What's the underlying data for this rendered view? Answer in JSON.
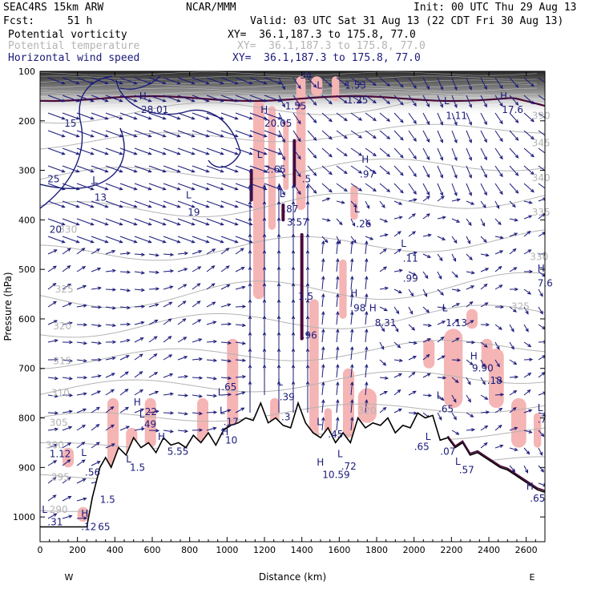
{
  "header": {
    "model": "SEAC4RS 15km ARW",
    "center": "NCAR/MMM",
    "init": "Init: 00 UTC Thu 29 Aug 13",
    "fcst_label": "Fcst:",
    "fcst_value": "51 h",
    "valid": "Valid: 03 UTC Sat 31 Aug 13 (22 CDT Fri 30 Aug 13)"
  },
  "fields": [
    {
      "name": "Potential vorticity",
      "xy": "XY=  36.1,187.3 to 175.8, 77.0",
      "color": "#000000"
    },
    {
      "name": "Potential temperature",
      "xy": "XY=  36.1,187.3 to 175.8, 77.0",
      "color": "#b4b4b4"
    },
    {
      "name": "Horizontal wind speed",
      "xy": "XY=  36.1,187.3 to 175.8, 77.0",
      "color": "#1a1a7a"
    }
  ],
  "chart_data": {
    "type": "cross-section",
    "xlabel": "Distance (km)",
    "ylabel": "Pressure (hPa)",
    "xlim": [
      0,
      2700
    ],
    "ylim": [
      1050,
      100
    ],
    "x_ticks": [
      0,
      200,
      400,
      600,
      800,
      1000,
      1200,
      1400,
      1600,
      1800,
      2000,
      2200,
      2400,
      2600
    ],
    "y_ticks": [
      100,
      200,
      300,
      400,
      500,
      600,
      700,
      800,
      900,
      1000
    ],
    "x_end_labels": {
      "left": "W",
      "right": "E"
    },
    "terrain": {
      "x": [
        0,
        250,
        280,
        320,
        350,
        380,
        420,
        460,
        500,
        540,
        580,
        620,
        660,
        700,
        740,
        780,
        820,
        860,
        900,
        940,
        980,
        1020,
        1060,
        1100,
        1140,
        1180,
        1220,
        1260,
        1300,
        1340,
        1380,
        1420,
        1460,
        1500,
        1540,
        1580,
        1620,
        1660,
        1700,
        1740,
        1780,
        1820,
        1860,
        1900,
        1940,
        1980,
        2020,
        2060,
        2100,
        2140,
        2180,
        2220,
        2260,
        2300,
        2340,
        2380,
        2420,
        2460,
        2500,
        2540,
        2580,
        2620,
        2660,
        2700
      ],
      "p": [
        1020,
        1020,
        960,
        900,
        880,
        900,
        860,
        875,
        840,
        860,
        850,
        870,
        840,
        855,
        850,
        860,
        835,
        850,
        830,
        855,
        825,
        815,
        810,
        800,
        805,
        770,
        810,
        800,
        815,
        820,
        770,
        810,
        830,
        840,
        820,
        850,
        830,
        850,
        800,
        820,
        810,
        815,
        800,
        830,
        815,
        820,
        790,
        800,
        795,
        845,
        840,
        860,
        850,
        875,
        870,
        880,
        890,
        900,
        905,
        915,
        925,
        935,
        945,
        950
      ]
    },
    "theta_labels": [
      {
        "text": "390",
        "x": 2630,
        "p": 190
      },
      {
        "text": "345",
        "x": 2630,
        "p": 245
      },
      {
        "text": "340",
        "x": 2630,
        "p": 315
      },
      {
        "text": "335",
        "x": 2630,
        "p": 385
      },
      {
        "text": "330",
        "x": 2620,
        "p": 475
      },
      {
        "text": "325",
        "x": 2520,
        "p": 575
      },
      {
        "text": "330",
        "x": 100,
        "p": 420
      },
      {
        "text": "325",
        "x": 80,
        "p": 540
      },
      {
        "text": "320",
        "x": 70,
        "p": 615
      },
      {
        "text": "315",
        "x": 70,
        "p": 685
      },
      {
        "text": "310",
        "x": 60,
        "p": 750
      },
      {
        "text": "305",
        "x": 50,
        "p": 810
      },
      {
        "text": "300",
        "x": 30,
        "p": 855
      },
      {
        "text": "295",
        "x": 60,
        "p": 920
      },
      {
        "text": "290",
        "x": 50,
        "p": 985
      },
      {
        "text": "320",
        "x": 1700,
        "p": 785
      }
    ],
    "wind_labels": [
      {
        "text": "H",
        "x": 530,
        "p": 150
      },
      {
        "text": "28.01",
        "x": 540,
        "p": 178
      },
      {
        "text": "15",
        "x": 130,
        "p": 205
      },
      {
        "text": "25",
        "x": 40,
        "p": 318
      },
      {
        "text": "L",
        "x": 280,
        "p": 320
      },
      {
        "text": "13",
        "x": 290,
        "p": 355
      },
      {
        "text": "20",
        "x": 50,
        "p": 420
      },
      {
        "text": "L",
        "x": 780,
        "p": 350
      },
      {
        "text": "19",
        "x": 790,
        "p": 385
      },
      {
        "text": "H",
        "x": 1180,
        "p": 178
      },
      {
        "text": "20.05",
        "x": 1200,
        "p": 205
      },
      {
        "text": "1.55",
        "x": 1310,
        "p": 170
      },
      {
        "text": "L",
        "x": 1160,
        "p": 268
      },
      {
        "text": "2.65",
        "x": 1200,
        "p": 298
      },
      {
        "text": "L",
        "x": 1280,
        "p": 348
      },
      {
        "text": ".87",
        "x": 1300,
        "p": 378
      },
      {
        "text": "3.57",
        "x": 1320,
        "p": 405
      },
      {
        "text": ".5",
        "x": 1400,
        "p": 318
      },
      {
        "text": "1.5",
        "x": 1380,
        "p": 555
      },
      {
        "text": ".96",
        "x": 1400,
        "p": 633
      },
      {
        "text": "L",
        "x": 1480,
        "p": 128
      },
      {
        "text": "1.53",
        "x": 1630,
        "p": 128
      },
      {
        "text": "1.25",
        "x": 1640,
        "p": 158
      },
      {
        "text": "H",
        "x": 1720,
        "p": 278
      },
      {
        "text": ".97",
        "x": 1710,
        "p": 308
      },
      {
        "text": "L",
        "x": 1680,
        "p": 378
      },
      {
        "text": ".26",
        "x": 1690,
        "p": 408
      },
      {
        "text": "L",
        "x": 1930,
        "p": 448
      },
      {
        "text": ".11",
        "x": 1940,
        "p": 478
      },
      {
        "text": ".99",
        "x": 1940,
        "p": 518
      },
      {
        "text": "L",
        "x": 2160,
        "p": 160
      },
      {
        "text": "1.11",
        "x": 2170,
        "p": 190
      },
      {
        "text": "H",
        "x": 2460,
        "p": 150
      },
      {
        "text": "17.6",
        "x": 2470,
        "p": 178
      },
      {
        "text": "H",
        "x": 2660,
        "p": 498
      },
      {
        "text": "7.6",
        "x": 2660,
        "p": 528
      },
      {
        "text": "H",
        "x": 1660,
        "p": 548
      },
      {
        "text": ".98",
        "x": 1660,
        "p": 578
      },
      {
        "text": "H",
        "x": 1760,
        "p": 578
      },
      {
        "text": "8.31",
        "x": 1790,
        "p": 608
      },
      {
        "text": "L",
        "x": 2150,
        "p": 578
      },
      {
        "text": "1.13",
        "x": 2170,
        "p": 608
      },
      {
        "text": "H",
        "x": 2300,
        "p": 675
      },
      {
        "text": "9.90",
        "x": 2310,
        "p": 700
      },
      {
        "text": ".18",
        "x": 2390,
        "p": 725
      },
      {
        "text": "L",
        "x": 2120,
        "p": 755
      },
      {
        "text": ".65",
        "x": 2130,
        "p": 782
      },
      {
        "text": "L",
        "x": 950,
        "p": 748
      },
      {
        "text": ".65",
        "x": 970,
        "p": 738
      },
      {
        "text": "L",
        "x": 960,
        "p": 785
      },
      {
        "text": ".17",
        "x": 980,
        "p": 808
      },
      {
        "text": "H",
        "x": 970,
        "p": 828
      },
      {
        "text": "10",
        "x": 990,
        "p": 845
      },
      {
        "text": "L",
        "x": 1270,
        "p": 728
      },
      {
        "text": ".39",
        "x": 1280,
        "p": 758
      },
      {
        "text": "L",
        "x": 1480,
        "p": 808
      },
      {
        "text": ".45",
        "x": 1540,
        "p": 833
      },
      {
        "text": "H",
        "x": 500,
        "p": 768
      },
      {
        "text": "L",
        "x": 530,
        "p": 793
      },
      {
        "text": "22",
        "x": 560,
        "p": 788
      },
      {
        "text": ".49",
        "x": 540,
        "p": 813
      },
      {
        "text": "H",
        "x": 630,
        "p": 838
      },
      {
        "text": "5.55",
        "x": 680,
        "p": 868
      },
      {
        "text": "L",
        "x": 460,
        "p": 883
      },
      {
        "text": "1.5",
        "x": 480,
        "p": 900
      },
      {
        "text": "1.12",
        "x": 50,
        "p": 873
      },
      {
        "text": "L",
        "x": 220,
        "p": 870
      },
      {
        "text": ".56",
        "x": 240,
        "p": 910
      },
      {
        "text": "1.5",
        "x": 320,
        "p": 965
      },
      {
        "text": "L",
        "x": 10,
        "p": 985
      },
      {
        "text": ".31",
        "x": 40,
        "p": 1010
      },
      {
        "text": "H",
        "x": 220,
        "p": 993
      },
      {
        "text": ".12",
        "x": 220,
        "p": 1020
      },
      {
        "text": "65",
        "x": 310,
        "p": 1020
      },
      {
        "text": "H",
        "x": 1480,
        "p": 890
      },
      {
        "text": "10.59",
        "x": 1510,
        "p": 915
      },
      {
        "text": ".72",
        "x": 1610,
        "p": 898
      },
      {
        "text": "L",
        "x": 1590,
        "p": 873
      },
      {
        "text": ".65",
        "x": 2000,
        "p": 858
      },
      {
        "text": "L",
        "x": 2060,
        "p": 838
      },
      {
        "text": ".07",
        "x": 2140,
        "p": 868
      },
      {
        "text": "L",
        "x": 2220,
        "p": 888
      },
      {
        "text": ".57",
        "x": 2240,
        "p": 905
      },
      {
        "text": "H",
        "x": 2600,
        "p": 938
      },
      {
        "text": ".65",
        "x": 2620,
        "p": 963
      },
      {
        "text": "L",
        "x": 2660,
        "p": 780
      },
      {
        "text": ".7",
        "x": 2660,
        "p": 803
      },
      {
        "text": "34",
        "x": 1390,
        "p": 108
      },
      {
        "text": ".3",
        "x": 1290,
        "p": 798
      }
    ]
  },
  "colors": {
    "pv_shade": "#f5b5b5",
    "pv_contour": "#4a0a3a",
    "wind": "#1a1a7a",
    "theta": "#b4b4b4",
    "terrain": "#000000"
  }
}
